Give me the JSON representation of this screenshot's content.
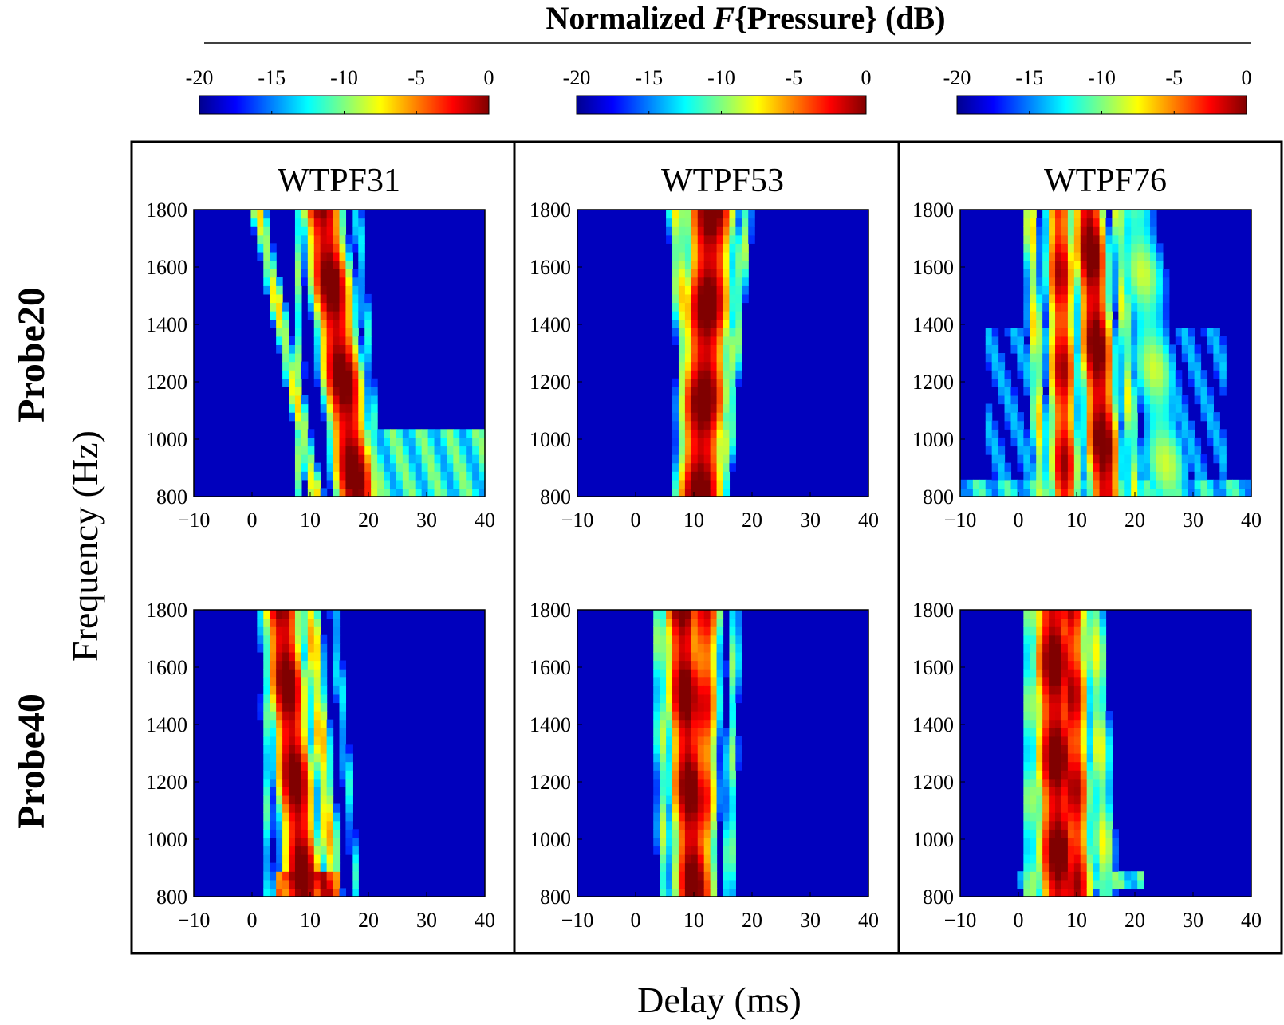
{
  "figure_title": {
    "prefix": "Normalized ",
    "italic": "F",
    "suffix": "{Pressure} (dB)"
  },
  "chart_data": {
    "type": "heatmap",
    "colormap": "jet",
    "colorbar": {
      "min": -20,
      "max": 0,
      "ticks": [
        "-20",
        "-15",
        "-10",
        "-5",
        "0"
      ]
    },
    "xlabel": "Delay (ms)",
    "ylabel": "Frequency (Hz)",
    "x_range": [
      -10,
      40
    ],
    "y_range": [
      800,
      1800
    ],
    "x_ticks": [
      "−10",
      "0",
      "10",
      "20",
      "30",
      "40"
    ],
    "y_ticks": [
      "1800",
      "1600",
      "1400",
      "1200",
      "1000",
      "800"
    ],
    "columns": [
      "WTPF31",
      "WTPF53",
      "WTPF76"
    ],
    "rows": [
      "Probe20",
      "Probe40"
    ],
    "panels": [
      {
        "column": "WTPF31",
        "row": "Probe20",
        "ridges": [
          {
            "t0": 18,
            "t1": 12,
            "width": 2.2,
            "level": 0
          },
          {
            "t0": 11,
            "t1": 1,
            "width": 1.0,
            "level": -8
          },
          {
            "t0": 19,
            "t1": 11,
            "width": 1.0,
            "level": -9
          },
          {
            "t0": 8,
            "t1": 8,
            "width": 0.8,
            "level": -11
          },
          {
            "t0": 22,
            "t1": 18,
            "width": 0.8,
            "level": -13
          }
        ],
        "bands": [
          {
            "f0": 800,
            "f1": 1030,
            "t0": 14,
            "t1": 40,
            "level": -12
          }
        ]
      },
      {
        "column": "WTPF53",
        "row": "Probe20",
        "ridges": [
          {
            "t0": 11,
            "t1": 13,
            "width": 2.5,
            "level": 0
          },
          {
            "t0": 10,
            "t1": 7,
            "width": 1.2,
            "level": -8
          },
          {
            "t0": 15,
            "t1": 19,
            "width": 1.0,
            "level": -10
          }
        ],
        "bands": []
      },
      {
        "column": "WTPF76",
        "row": "Probe20",
        "ridges": [
          {
            "t0": 8,
            "t1": 7,
            "width": 1.6,
            "level": -2
          },
          {
            "t0": 15,
            "t1": 12,
            "width": 1.8,
            "level": 0
          },
          {
            "t0": 4,
            "t1": 2,
            "width": 1.0,
            "level": -8
          },
          {
            "t0": 26,
            "t1": 20,
            "width": 3.0,
            "level": -10
          },
          {
            "t0": 20,
            "t1": 17,
            "width": 1.0,
            "level": -9
          }
        ],
        "bands": [
          {
            "f0": 800,
            "f1": 860,
            "t0": -10,
            "t1": 40,
            "level": -13
          },
          {
            "f0": 860,
            "f1": 1390,
            "t0": -6,
            "t1": 36,
            "level": -16
          }
        ]
      },
      {
        "column": "WTPF31",
        "row": "Probe40",
        "ridges": [
          {
            "t0": 9,
            "t1": 5,
            "width": 2.0,
            "level": 0
          },
          {
            "t0": 14,
            "t1": 10,
            "width": 1.2,
            "level": -7
          },
          {
            "t0": 3,
            "t1": 2,
            "width": 0.8,
            "level": -12
          },
          {
            "t0": 18,
            "t1": 14,
            "width": 0.8,
            "level": -13
          }
        ],
        "bands": [
          {
            "f0": 800,
            "f1": 900,
            "t0": 4,
            "t1": 15,
            "level": -3
          }
        ]
      },
      {
        "column": "WTPF53",
        "row": "Probe40",
        "ridges": [
          {
            "t0": 10,
            "t1": 8,
            "width": 2.0,
            "level": 0
          },
          {
            "t0": 11,
            "t1": 12,
            "width": 1.8,
            "level": -3
          },
          {
            "t0": 5,
            "t1": 4,
            "width": 1.0,
            "level": -10
          },
          {
            "t0": 16,
            "t1": 17,
            "width": 1.0,
            "level": -11
          }
        ],
        "bands": []
      },
      {
        "column": "WTPF76",
        "row": "Probe40",
        "ridges": [
          {
            "t0": 7,
            "t1": 6,
            "width": 2.2,
            "level": 0
          },
          {
            "t0": 10,
            "t1": 9,
            "width": 1.8,
            "level": -2
          },
          {
            "t0": 2,
            "t1": 2,
            "width": 1.0,
            "level": -10
          },
          {
            "t0": 15,
            "t1": 13,
            "width": 1.5,
            "level": -9
          }
        ],
        "bands": [
          {
            "f0": 820,
            "f1": 900,
            "t0": 0,
            "t1": 22,
            "level": -12
          }
        ]
      }
    ]
  }
}
